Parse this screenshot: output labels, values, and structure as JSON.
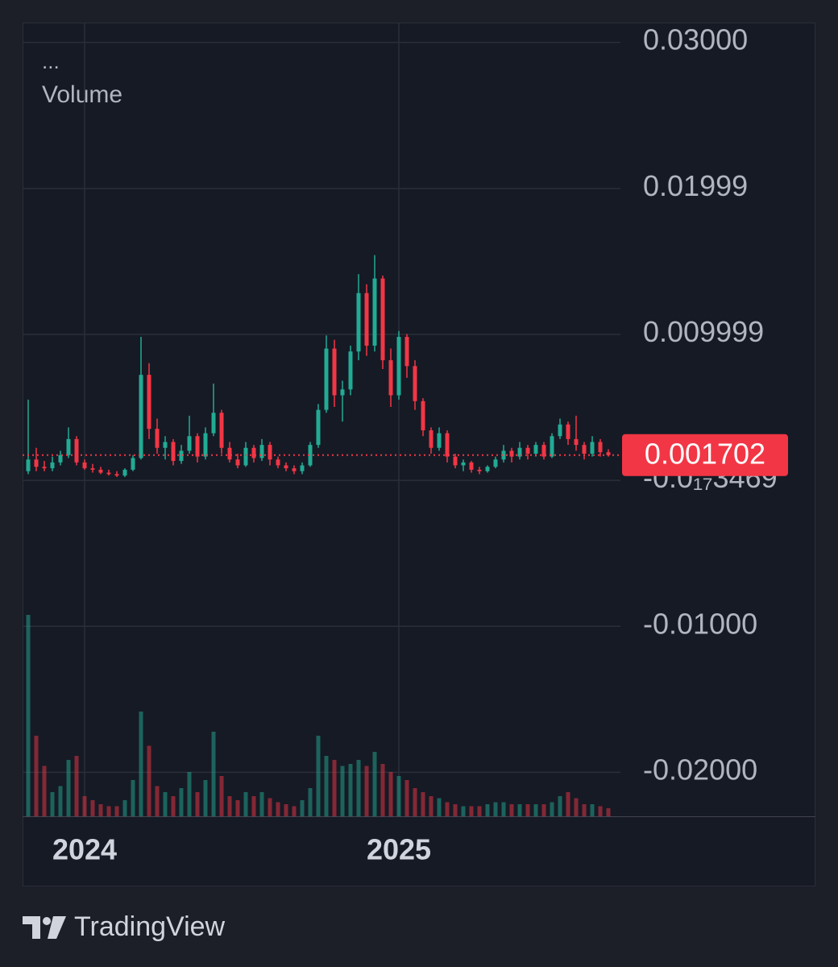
{
  "chart_data": {
    "type": "candlestick",
    "menu_label": "...",
    "volume_label": "Volume",
    "categories": [
      null,
      null,
      null,
      null,
      null,
      null,
      null,
      "2024",
      null,
      null,
      null,
      null,
      null,
      null,
      null,
      null,
      null,
      null,
      null,
      null,
      null,
      null,
      null,
      null,
      null,
      null,
      null,
      null,
      null,
      null,
      null,
      null,
      null,
      null,
      null,
      null,
      null,
      null,
      null,
      null,
      null,
      null,
      null,
      null,
      null,
      null,
      "2025",
      null,
      null,
      null,
      null,
      null,
      null,
      null,
      null,
      null,
      null,
      null,
      null,
      null,
      null,
      null,
      null,
      null,
      null,
      null,
      null,
      null,
      null,
      null,
      null,
      null,
      null
    ],
    "open": [
      0.0006,
      0.0014,
      0.0009,
      0.0008,
      0.0012,
      0.0017,
      0.0028,
      0.0012,
      0.0008,
      0.0007,
      0.0005,
      0.0004,
      0.0003,
      0.0007,
      0.0015,
      0.0072,
      0.0035,
      0.0022,
      0.0026,
      0.0013,
      0.002,
      0.003,
      0.0016,
      0.0032,
      0.0046,
      0.0022,
      0.0014,
      0.001,
      0.0022,
      0.0015,
      0.0024,
      0.0014,
      0.001,
      0.0008,
      0.0006,
      0.001,
      0.0024,
      0.0048,
      0.009,
      0.0058,
      0.0062,
      0.0088,
      0.0128,
      0.0092,
      0.0138,
      0.0082,
      0.0058,
      0.0098,
      0.0078,
      0.0054,
      0.0034,
      0.0022,
      0.0032,
      0.0016,
      0.001,
      0.0012,
      0.0007,
      0.0006,
      0.0009,
      0.0014,
      0.002,
      0.0016,
      0.0022,
      0.0018,
      0.0024,
      0.0016,
      0.003,
      0.0038,
      0.0028,
      0.0024,
      0.0018,
      0.0026,
      0.0019
    ],
    "high": [
      0.0055,
      0.0022,
      0.0013,
      0.0016,
      0.002,
      0.0036,
      0.003,
      0.0014,
      0.0011,
      0.0009,
      0.0007,
      0.0006,
      0.0008,
      0.0017,
      0.0098,
      0.008,
      0.0042,
      0.003,
      0.0028,
      0.0024,
      0.0044,
      0.0032,
      0.0036,
      0.0066,
      0.0048,
      0.0026,
      0.0018,
      0.0026,
      0.0024,
      0.0028,
      0.0026,
      0.0016,
      0.0012,
      0.001,
      0.0012,
      0.0026,
      0.0052,
      0.0099,
      0.0096,
      0.0068,
      0.0092,
      0.0141,
      0.0134,
      0.0154,
      0.014,
      0.009,
      0.0102,
      0.01,
      0.0082,
      0.0056,
      0.0036,
      0.0036,
      0.0034,
      0.0018,
      0.0014,
      0.0013,
      0.0009,
      0.001,
      0.0016,
      0.0024,
      0.0022,
      0.0026,
      0.0024,
      0.0026,
      0.0026,
      0.0032,
      0.0042,
      0.004,
      0.0044,
      0.0026,
      0.003,
      0.0028,
      0.0021
    ],
    "low": [
      0.0004,
      0.0006,
      0.0006,
      0.0006,
      0.001,
      0.0015,
      0.001,
      0.0007,
      0.0005,
      0.0004,
      0.0003,
      0.0002,
      0.0002,
      0.0006,
      0.0014,
      0.0028,
      0.0018,
      0.0014,
      0.001,
      0.0011,
      0.0018,
      0.0012,
      0.0014,
      0.003,
      0.0018,
      0.0012,
      0.0008,
      0.0009,
      0.0012,
      0.0013,
      0.001,
      0.0008,
      0.0006,
      0.0004,
      0.0004,
      0.0009,
      0.0022,
      0.0046,
      0.005,
      0.004,
      0.0058,
      0.0082,
      0.0085,
      0.0088,
      0.0076,
      0.005,
      0.0055,
      0.007,
      0.0048,
      0.003,
      0.0018,
      0.002,
      0.0012,
      0.0008,
      0.0006,
      0.0005,
      0.0004,
      0.0005,
      0.0008,
      0.0012,
      0.0012,
      0.0014,
      0.0014,
      0.0016,
      0.0014,
      0.0015,
      0.0028,
      0.0024,
      0.002,
      0.0014,
      0.0016,
      0.0016,
      0.0016
    ],
    "close": [
      0.0014,
      0.0009,
      0.0008,
      0.0012,
      0.0017,
      0.0028,
      0.0012,
      0.0008,
      0.0007,
      0.0005,
      0.0004,
      0.0003,
      0.0007,
      0.0015,
      0.0072,
      0.0035,
      0.0022,
      0.0026,
      0.0013,
      0.002,
      0.003,
      0.0016,
      0.0032,
      0.0046,
      0.0022,
      0.0014,
      0.001,
      0.0022,
      0.0015,
      0.0024,
      0.0014,
      0.001,
      0.0008,
      0.0006,
      0.001,
      0.0024,
      0.0048,
      0.009,
      0.0058,
      0.0062,
      0.0088,
      0.0128,
      0.0092,
      0.0138,
      0.0082,
      0.0058,
      0.0098,
      0.0078,
      0.0054,
      0.0034,
      0.0022,
      0.0032,
      0.0016,
      0.001,
      0.0012,
      0.0007,
      0.0006,
      0.0009,
      0.0014,
      0.002,
      0.0016,
      0.0022,
      0.0018,
      0.0024,
      0.0016,
      0.003,
      0.0038,
      0.0028,
      0.0024,
      0.0018,
      0.0026,
      0.0019,
      0.0017
    ],
    "volume": [
      100,
      40,
      25,
      12,
      15,
      28,
      30,
      10,
      8,
      6,
      5,
      5,
      8,
      18,
      52,
      35,
      15,
      12,
      10,
      14,
      22,
      12,
      18,
      42,
      20,
      10,
      8,
      12,
      10,
      12,
      9,
      7,
      6,
      5,
      8,
      14,
      40,
      30,
      28,
      25,
      26,
      28,
      25,
      32,
      26,
      22,
      20,
      18,
      14,
      12,
      10,
      9,
      7,
      6,
      5,
      5,
      5,
      6,
      7,
      7,
      6,
      6,
      6,
      6,
      6,
      7,
      10,
      12,
      9,
      6,
      6,
      5,
      4
    ],
    "up_color": "#22ab94",
    "down_color": "#f23645",
    "last_price": 0.001702,
    "ylim": [
      -0.02304,
      0.03122
    ],
    "yticks": [
      {
        "value": 0.03,
        "label": "0.03000"
      },
      0.01999,
      0.009999,
      {
        "value": 0,
        "label": "-0.0₁₇3469"
      },
      {
        "value": -0.01,
        "label": "-0.01000"
      },
      {
        "value": -0.02,
        "label": "-0.02000"
      }
    ],
    "grid": true
  },
  "branding": "TradingView"
}
